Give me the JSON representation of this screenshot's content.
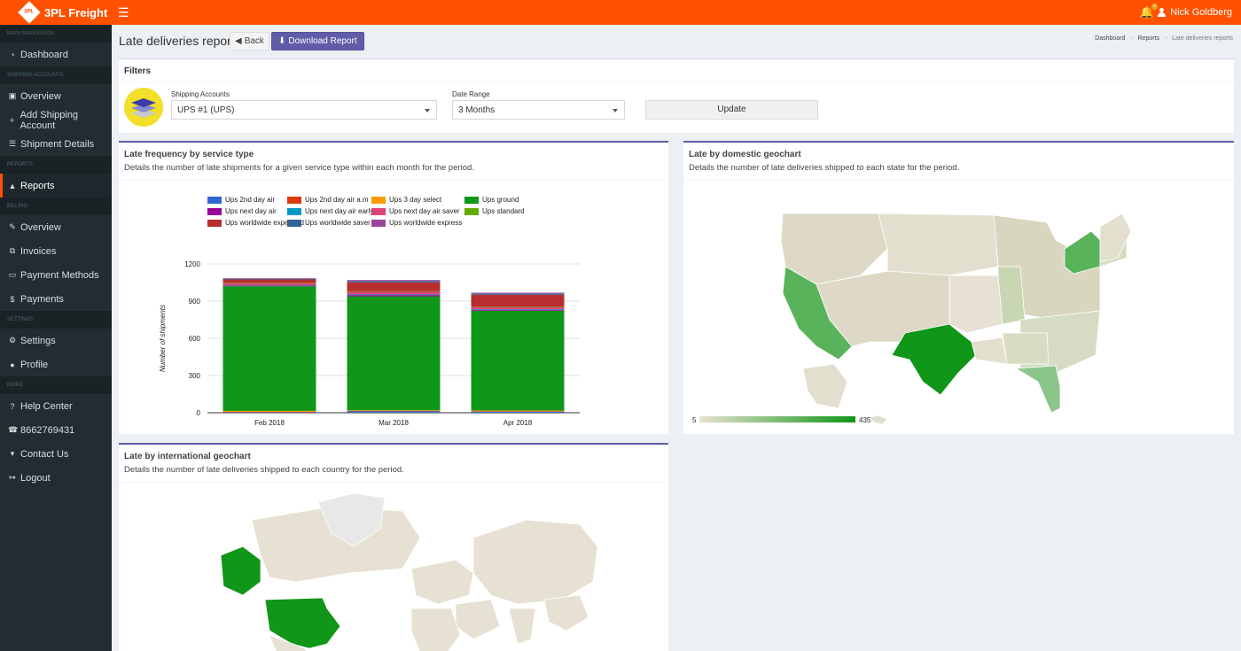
{
  "brand": {
    "name": "3PL Freight",
    "logo_text": "3PL"
  },
  "topbar": {
    "notification_count": "4",
    "user_name": "Nick Goldberg"
  },
  "sidebar": {
    "sections": [
      {
        "header": "MAIN NAVIGATION",
        "items": [
          {
            "label": "Dashboard",
            "icon": "dashboard-icon"
          }
        ]
      },
      {
        "header": "SHIPPING ACCOUNTS",
        "items": [
          {
            "label": "Overview",
            "icon": "truck-icon"
          },
          {
            "label": "Add Shipping Account",
            "icon": "plus-icon"
          },
          {
            "label": "Shipment Details",
            "icon": "list-icon"
          }
        ]
      },
      {
        "header": "Reports",
        "items": [
          {
            "label": "Reports",
            "icon": "area-chart-icon",
            "active": true
          }
        ]
      },
      {
        "header": "BILLING",
        "items": [
          {
            "label": "Overview",
            "icon": "edit-icon"
          },
          {
            "label": "Invoices",
            "icon": "copy-icon"
          },
          {
            "label": "Payment Methods",
            "icon": "credit-card-icon"
          },
          {
            "label": "Payments",
            "icon": "dollar-icon"
          }
        ]
      },
      {
        "header": "SETTINGS",
        "items": [
          {
            "label": "Settings",
            "icon": "gear-icon"
          },
          {
            "label": "Profile",
            "icon": "user-icon"
          }
        ]
      },
      {
        "header": "MORE",
        "items": [
          {
            "label": "Help Center",
            "icon": "question-icon"
          },
          {
            "label": "8662769431",
            "icon": "phone-icon"
          },
          {
            "label": "Contact Us",
            "icon": "map-marker-icon"
          },
          {
            "label": "Logout",
            "icon": "sign-out-icon"
          }
        ]
      }
    ]
  },
  "header": {
    "title": "Late deliveries reports",
    "back_label": "Back",
    "download_label": "Download Report",
    "breadcrumb": [
      "Dashboard",
      "Reports",
      "Late deliveries reports"
    ]
  },
  "filters": {
    "title": "Filters",
    "account_label": "Shipping Accounts",
    "account_value": "UPS #1 (UPS)",
    "range_label": "Date Range",
    "range_value": "3 Months",
    "update_label": "Update"
  },
  "service_panel": {
    "title": "Late frequency by service type",
    "description": "Details the number of late shipments for a given service type within each month for the period."
  },
  "domestic_panel": {
    "title": "Late by domestic geochart",
    "description": "Details the number of late deliveries shipped to each state for the period.",
    "scale_min": "5",
    "scale_max": "435",
    "color_min": "#e7e2d0",
    "color_max": "#109618"
  },
  "intl_panel": {
    "title": "Late by international geochart",
    "description": "Details the number of late deliveries shipped to each country for the period."
  },
  "chart_data": {
    "type": "bar",
    "stacked": true,
    "categories": [
      "Feb 2018",
      "Mar 2018",
      "Apr 2018"
    ],
    "ylabel": "Number of shipments",
    "ylim": [
      0,
      1200
    ],
    "yticks": [
      0,
      300,
      600,
      900,
      1200
    ],
    "legend_position": "top",
    "series": [
      {
        "name": "Ups 2nd day air",
        "color": "#3366cc",
        "values": [
          5,
          12,
          10
        ]
      },
      {
        "name": "Ups 2nd day air a.m",
        "color": "#dc3912",
        "values": [
          2,
          3,
          2
        ]
      },
      {
        "name": "Ups 3 day select",
        "color": "#ff9900",
        "values": [
          8,
          4,
          6
        ]
      },
      {
        "name": "Ups ground",
        "color": "#109618",
        "values": [
          1005,
          920,
          805
        ]
      },
      {
        "name": "Ups next day air",
        "color": "#990099",
        "values": [
          5,
          10,
          8
        ]
      },
      {
        "name": "Ups next day air early",
        "color": "#0099c6",
        "values": [
          3,
          5,
          4
        ]
      },
      {
        "name": "Ups next day air saver",
        "color": "#dd4477",
        "values": [
          20,
          25,
          20
        ]
      },
      {
        "name": "Ups standard",
        "color": "#66aa00",
        "values": [
          2,
          3,
          2
        ]
      },
      {
        "name": "Ups worldwide expedited",
        "color": "#b82e2e",
        "values": [
          25,
          70,
          95
        ]
      },
      {
        "name": "Ups worldwide saver",
        "color": "#316395",
        "values": [
          5,
          10,
          10
        ]
      },
      {
        "name": "Ups worldwide express",
        "color": "#994499",
        "values": [
          5,
          8,
          6
        ]
      }
    ]
  }
}
